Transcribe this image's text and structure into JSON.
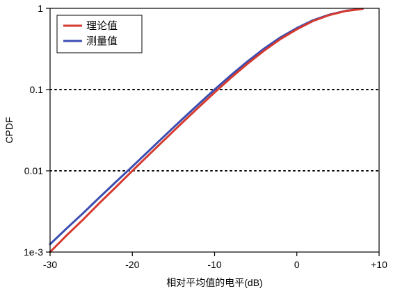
{
  "chart_data": {
    "type": "line",
    "title": "",
    "xlabel": "相对平均值的电平(dB)",
    "ylabel": "CPDF",
    "xlim": [
      -30,
      10
    ],
    "ylim": [
      0.001,
      1
    ],
    "yscale": "log",
    "xticks": [
      {
        "value": -30,
        "label": "-30"
      },
      {
        "value": -20,
        "label": "-20"
      },
      {
        "value": -10,
        "label": "-10"
      },
      {
        "value": 0,
        "label": "0"
      },
      {
        "value": 10,
        "label": "+10"
      }
    ],
    "yticks": [
      {
        "value": 1,
        "label": "1"
      },
      {
        "value": 0.1,
        "label": "0.1"
      },
      {
        "value": 0.01,
        "label": "0.01"
      },
      {
        "value": 0.001,
        "label": "1e-3"
      }
    ],
    "grid": {
      "dotted_horizontal": [
        0.1,
        0.01
      ]
    },
    "legend": {
      "position": "top-left"
    },
    "series": [
      {
        "name": "理论值",
        "color": "#d63a2f",
        "x": [
          -30,
          -28,
          -26,
          -24,
          -22,
          -20,
          -18,
          -16,
          -14,
          -12,
          -10,
          -8,
          -6,
          -4,
          -2,
          0,
          2,
          4,
          6,
          8
        ],
        "y": [
          0.001,
          0.0016,
          0.0025,
          0.004,
          0.0063,
          0.01,
          0.0157,
          0.0246,
          0.0385,
          0.0598,
          0.092,
          0.14,
          0.208,
          0.3,
          0.418,
          0.552,
          0.7,
          0.83,
          0.93,
          0.985
        ]
      },
      {
        "name": "测量值",
        "color": "#3a4db0",
        "x": [
          -30,
          -28,
          -26,
          -24,
          -22,
          -20,
          -18,
          -16,
          -14,
          -12,
          -10,
          -8,
          -6,
          -4,
          -2,
          0,
          2,
          4,
          6,
          8
        ],
        "y": [
          0.00125,
          0.00195,
          0.003,
          0.0047,
          0.0073,
          0.0113,
          0.0176,
          0.0274,
          0.0425,
          0.0655,
          0.1,
          0.151,
          0.222,
          0.318,
          0.438,
          0.572,
          0.715,
          0.84,
          0.935,
          0.985
        ]
      }
    ]
  }
}
